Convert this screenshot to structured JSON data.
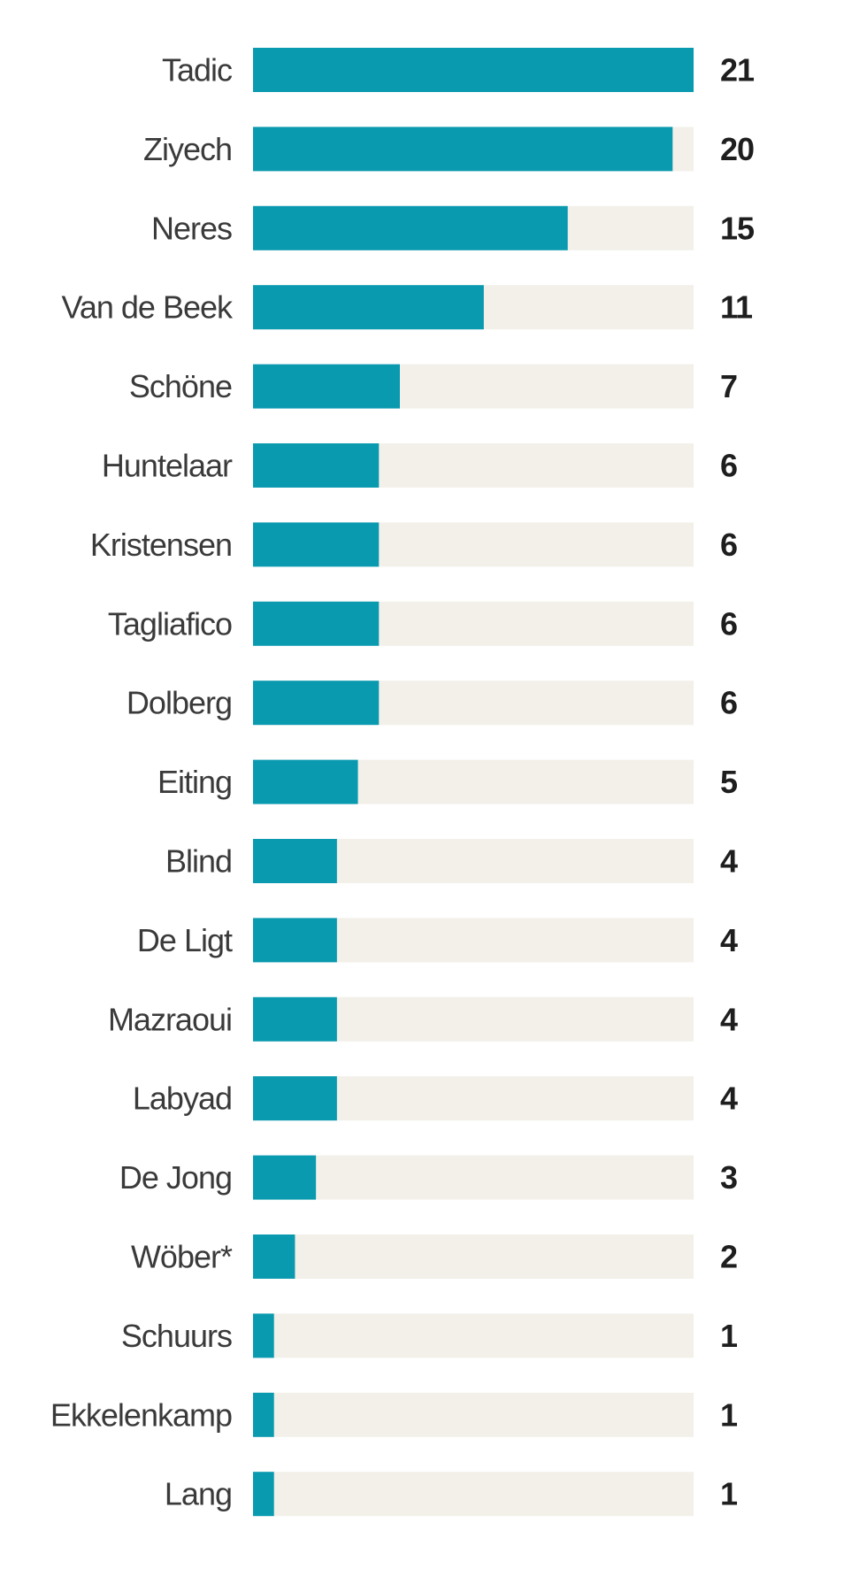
{
  "chart_data": {
    "type": "bar",
    "orientation": "horizontal",
    "categories": [
      "Tadic",
      "Ziyech",
      "Neres",
      "Van de Beek",
      "Schöne",
      "Huntelaar",
      "Kristensen",
      "Tagliafico",
      "Dolberg",
      "Eiting",
      "Blind",
      "De Ligt",
      "Mazraoui",
      "Labyad",
      "De Jong",
      "Wöber*",
      "Schuurs",
      "Ekkelenkamp",
      "Lang"
    ],
    "values": [
      21,
      20,
      15,
      11,
      7,
      6,
      6,
      6,
      6,
      5,
      4,
      4,
      4,
      4,
      3,
      2,
      1,
      1,
      1
    ],
    "value_labels": [
      "21",
      "20",
      "15",
      "11",
      "7",
      "6",
      "6",
      "6",
      "6",
      "5",
      "4",
      "4",
      "4",
      "4",
      "3",
      "2",
      "1",
      "1",
      "1"
    ],
    "xlim": [
      0,
      21
    ],
    "title": "",
    "xlabel": "",
    "ylabel": "",
    "grid": false,
    "legend": "none",
    "colors": {
      "bar": "#0a9ab0",
      "track": "#f2f0e9",
      "label": "#3a3a3a",
      "value": "#1e1e1e"
    }
  }
}
